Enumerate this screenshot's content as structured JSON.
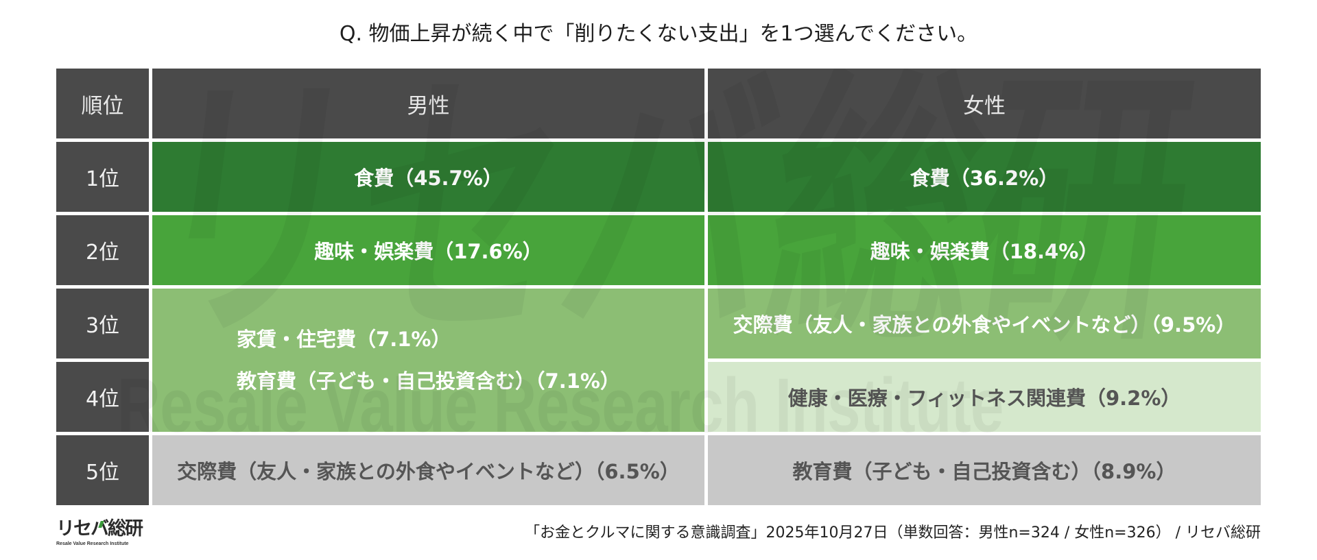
{
  "chart_data": {
    "type": "table",
    "title": "Q. 物価上昇が続く中で「削りたくない支出」を1つ選んでください。",
    "columns": [
      "順位",
      "男性",
      "女性"
    ],
    "rows": [
      {
        "rank": "1位",
        "male": "食費（45.7%）",
        "female": "食費（36.2%）"
      },
      {
        "rank": "2位",
        "male": "趣味・娯楽費（17.6%）",
        "female": "趣味・娯楽費（18.4%）"
      },
      {
        "rank": "3位",
        "female": "交際費（友人・家族との外食やイベントなど）（9.5%）"
      },
      {
        "rank": "4位",
        "female": "健康・医療・フィットネス関連費（9.2%）"
      },
      {
        "rank": "5位",
        "male": "交際費（友人・家族との外食やイベントなど）（6.5%）",
        "female": "教育費（子ども・自己投資含む）（8.9%）"
      }
    ],
    "male_ranks_3_4_tied": [
      "家賃・住宅費（7.1%）",
      "教育費（子ども・自己投資含む）（7.1%）"
    ]
  },
  "colors": {
    "header": "#4a4a4a",
    "rank1": "#2e7b32",
    "rank2": "#48a43b",
    "rank3": "#8cbe74",
    "rank4": "#d5e8cc",
    "rank5": "#c8c8c8",
    "logo_accent": "#3a9a3a"
  },
  "watermark": {
    "logo": "リセバ総研",
    "tagline": "Resale Value Research Institute"
  },
  "footer": {
    "logo": "リセバ総研",
    "logo_tagline": "Resale Value Research Institute",
    "source": "「お金とクルマに関する意識調査」2025年10月27日（単数回答：男性n=324 / 女性n=326） / リセバ総研"
  }
}
